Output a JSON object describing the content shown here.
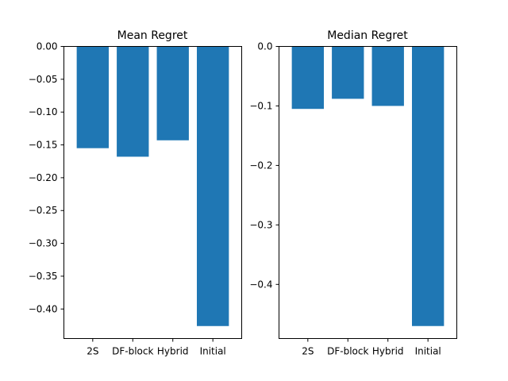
{
  "chart_data": [
    {
      "type": "bar",
      "title": "Mean Regret",
      "categories": [
        "2S",
        "DF-block",
        "Hybrid",
        "Initial"
      ],
      "values": [
        -0.155,
        -0.168,
        -0.143,
        -0.426
      ],
      "ylim": [
        -0.445,
        0.0
      ],
      "yticks": [
        0.0,
        -0.05,
        -0.1,
        -0.15,
        -0.2,
        -0.25,
        -0.3,
        -0.35,
        -0.4
      ],
      "ytick_labels": [
        "0.00",
        "−0.05",
        "−0.10",
        "−0.15",
        "−0.20",
        "−0.25",
        "−0.30",
        "−0.35",
        "−0.40"
      ],
      "color": "#1f77b4",
      "grid": false,
      "xlabel": "",
      "ylabel": ""
    },
    {
      "type": "bar",
      "title": "Median Regret",
      "categories": [
        "2S",
        "DF-block",
        "Hybrid",
        "Initial"
      ],
      "values": [
        -0.105,
        -0.088,
        -0.1,
        -0.47
      ],
      "ylim": [
        -0.491,
        0.0
      ],
      "yticks": [
        0.0,
        -0.1,
        -0.2,
        -0.3,
        -0.4
      ],
      "ytick_labels": [
        "0.0",
        "−0.1",
        "−0.2",
        "−0.3",
        "−0.4"
      ],
      "color": "#1f77b4",
      "grid": false,
      "xlabel": "",
      "ylabel": ""
    }
  ]
}
